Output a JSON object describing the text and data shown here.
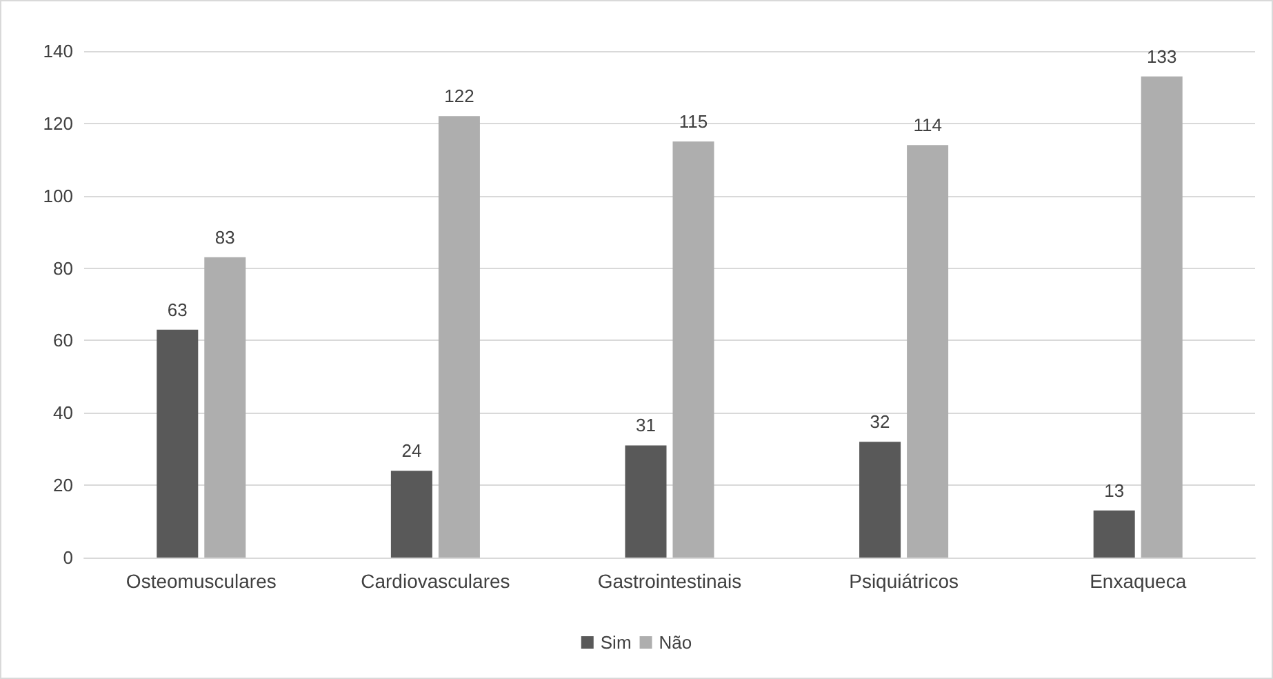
{
  "chart_data": {
    "type": "bar",
    "categories": [
      "Osteomusculares",
      "Cardiovasculares",
      "Gastrointestinais",
      "Psiquiátricos",
      "Enxaqueca"
    ],
    "series": [
      {
        "name": "Sim",
        "color": "#595959",
        "values": [
          63,
          24,
          31,
          32,
          13
        ]
      },
      {
        "name": "Não",
        "color": "#aeaeae",
        "values": [
          83,
          122,
          115,
          114,
          133
        ]
      }
    ],
    "ylim": [
      0,
      140
    ],
    "yticks": [
      0,
      20,
      40,
      60,
      80,
      100,
      120,
      140
    ],
    "grid": "y",
    "legend": "bottom",
    "data_labels": true
  }
}
